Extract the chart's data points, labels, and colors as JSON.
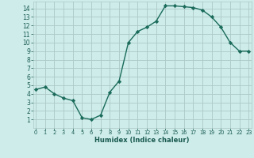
{
  "title": "",
  "xlabel": "Humidex (Indice chaleur)",
  "x": [
    0,
    1,
    2,
    3,
    4,
    5,
    6,
    7,
    8,
    9,
    10,
    11,
    12,
    13,
    14,
    15,
    16,
    17,
    18,
    19,
    20,
    21,
    22,
    23
  ],
  "y": [
    4.5,
    4.8,
    4.0,
    3.5,
    3.2,
    1.2,
    1.0,
    1.5,
    4.2,
    5.5,
    10.0,
    11.3,
    11.8,
    12.5,
    14.3,
    14.3,
    14.2,
    14.1,
    13.8,
    13.0,
    11.8,
    10.0,
    9.0,
    9.0
  ],
  "line_color": "#1a6b5a",
  "marker": "D",
  "marker_size": 2.2,
  "bg_color": "#cdecea",
  "grid_color": "#adc9c7",
  "tick_label_color": "#1a5a50",
  "xlabel_color": "#1a1a1a",
  "ylim": [
    0,
    14.8
  ],
  "xlim": [
    -0.3,
    23.3
  ],
  "yticks": [
    1,
    2,
    3,
    4,
    5,
    6,
    7,
    8,
    9,
    10,
    11,
    12,
    13,
    14
  ],
  "xticks": [
    0,
    1,
    2,
    3,
    4,
    5,
    6,
    7,
    8,
    9,
    10,
    11,
    12,
    13,
    14,
    15,
    16,
    17,
    18,
    19,
    20,
    21,
    22,
    23
  ],
  "linewidth": 1.0
}
